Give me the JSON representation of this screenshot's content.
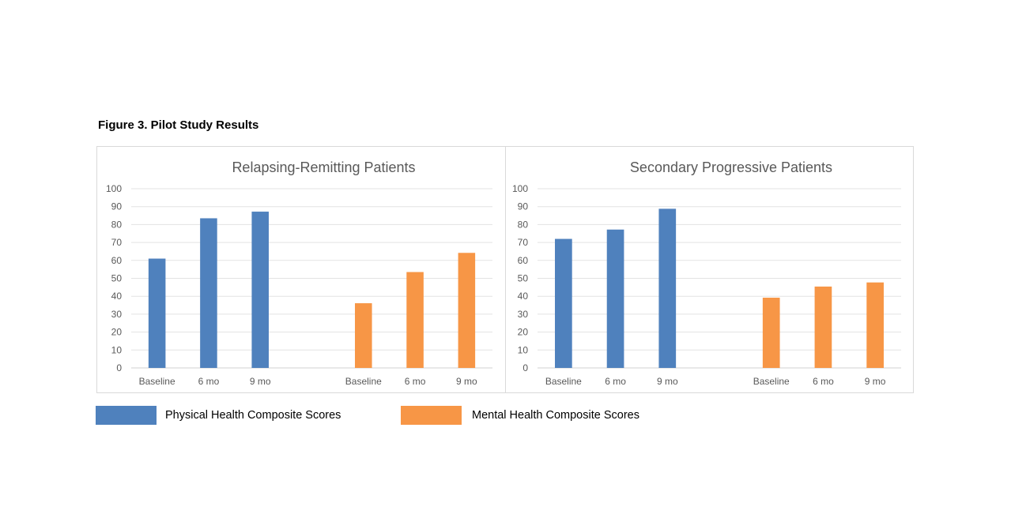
{
  "figure_title": "Figure 3. Pilot Study Results",
  "legend": [
    {
      "name": "Physical Health Composite Scores",
      "color": "#4f81bd"
    },
    {
      "name": "Mental Health Composite Scores",
      "color": "#f79646"
    }
  ],
  "chart_data": [
    {
      "type": "bar",
      "title": "Relapsing-Remitting Patients",
      "categories": [
        "Baseline",
        "6 mo",
        "9 mo"
      ],
      "ylim": [
        0,
        100
      ],
      "yticks": [
        0,
        10,
        20,
        30,
        40,
        50,
        60,
        70,
        80,
        90,
        100
      ],
      "grid": true,
      "legend_placement": "bottom",
      "series": [
        {
          "name": "Physical Health Composite Scores",
          "color": "#4f81bd",
          "values": [
            61,
            83.5,
            87.2
          ]
        },
        {
          "name": "Mental Health Composite Scores",
          "color": "#f79646",
          "values": [
            36.1,
            53.5,
            64.2
          ]
        }
      ]
    },
    {
      "type": "bar",
      "title": "Secondary Progressive Patients",
      "categories": [
        "Baseline",
        "6 mo",
        "9 mo"
      ],
      "ylim": [
        0,
        100
      ],
      "yticks": [
        0,
        10,
        20,
        30,
        40,
        50,
        60,
        70,
        80,
        90,
        100
      ],
      "grid": true,
      "legend_placement": "bottom",
      "series": [
        {
          "name": "Physical Health Composite Scores",
          "color": "#4f81bd",
          "values": [
            72,
            77.2,
            88.8
          ]
        },
        {
          "name": "Mental Health Composite Scores",
          "color": "#f79646",
          "values": [
            39.2,
            45.4,
            47.7
          ]
        }
      ]
    }
  ]
}
